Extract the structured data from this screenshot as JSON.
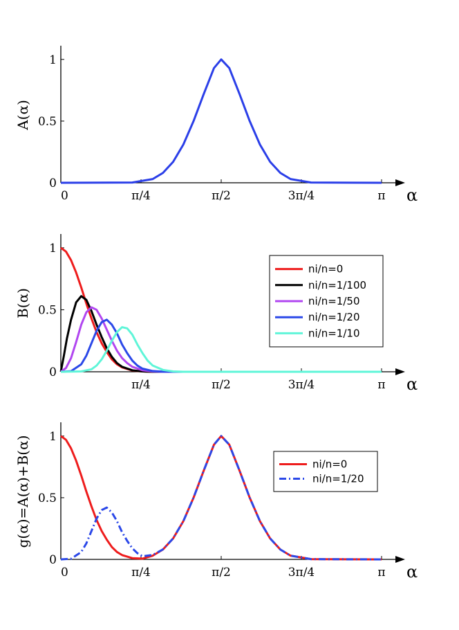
{
  "chart_data": [
    {
      "type": "line",
      "ylabel": "A(α)",
      "xlabel": "α",
      "xlim": [
        0,
        3.14159
      ],
      "ylim": [
        0,
        1.1
      ],
      "xticks": [
        {
          "value": 0,
          "label": "0"
        },
        {
          "value": 0.7854,
          "label": "π/4"
        },
        {
          "value": 1.5708,
          "label": "π/2"
        },
        {
          "value": 2.3562,
          "label": "3π/4"
        },
        {
          "value": 3.14159,
          "label": "π"
        }
      ],
      "yticks": [
        {
          "value": 0,
          "label": "0"
        },
        {
          "value": 0.5,
          "label": "0.5"
        },
        {
          "value": 1,
          "label": "1"
        }
      ],
      "legend": null,
      "series": [
        {
          "color": "#2b3fe8",
          "style": "solid",
          "x": [
            0,
            0.7,
            0.9,
            1.0,
            1.1,
            1.2,
            1.3,
            1.4,
            1.5,
            1.5708,
            1.65,
            1.75,
            1.85,
            1.95,
            2.05,
            2.15,
            2.25,
            2.45,
            3.14159
          ],
          "y": [
            0,
            0.002,
            0.03,
            0.08,
            0.17,
            0.31,
            0.5,
            0.72,
            0.93,
            1.0,
            0.93,
            0.72,
            0.5,
            0.31,
            0.17,
            0.08,
            0.03,
            0.002,
            0
          ]
        }
      ]
    },
    {
      "type": "line",
      "ylabel": "B(α)",
      "xlabel": "α",
      "xlim": [
        0,
        3.14159
      ],
      "ylim": [
        0,
        1.1
      ],
      "xticks": [
        {
          "value": 0.7854,
          "label": "π/4"
        },
        {
          "value": 1.5708,
          "label": "π/2"
        },
        {
          "value": 2.3562,
          "label": "3π/4"
        },
        {
          "value": 3.14159,
          "label": "π"
        }
      ],
      "yticks": [
        {
          "value": 0,
          "label": "0"
        },
        {
          "value": 0.5,
          "label": "0.5"
        },
        {
          "value": 1,
          "label": "1"
        }
      ],
      "legend": "top-right",
      "series": [
        {
          "name": "ni/n=0",
          "color": "#ee1c1c",
          "style": "solid",
          "x": [
            0,
            0.05,
            0.1,
            0.15,
            0.2,
            0.25,
            0.3,
            0.35,
            0.4,
            0.45,
            0.5,
            0.55,
            0.6,
            0.7,
            0.8,
            0.9,
            3.14159
          ],
          "y": [
            1.0,
            0.97,
            0.9,
            0.8,
            0.68,
            0.55,
            0.43,
            0.32,
            0.23,
            0.16,
            0.1,
            0.06,
            0.035,
            0.01,
            0.003,
            0,
            0
          ]
        },
        {
          "name": "ni/n=1/100",
          "color": "#000000",
          "style": "solid",
          "x": [
            0,
            0.03,
            0.06,
            0.1,
            0.15,
            0.2,
            0.25,
            0.3,
            0.35,
            0.4,
            0.45,
            0.5,
            0.55,
            0.6,
            0.7,
            0.8,
            0.9,
            3.14159
          ],
          "y": [
            0,
            0.13,
            0.27,
            0.42,
            0.56,
            0.61,
            0.58,
            0.49,
            0.38,
            0.28,
            0.19,
            0.12,
            0.07,
            0.04,
            0.012,
            0.003,
            0,
            0
          ]
        },
        {
          "name": "ni/n=1/50",
          "color": "#b146f0",
          "style": "solid",
          "x": [
            0,
            0.05,
            0.1,
            0.15,
            0.2,
            0.25,
            0.3,
            0.35,
            0.4,
            0.45,
            0.5,
            0.55,
            0.6,
            0.65,
            0.7,
            0.8,
            0.9,
            1.0,
            3.14159
          ],
          "y": [
            0,
            0.03,
            0.11,
            0.24,
            0.38,
            0.48,
            0.52,
            0.5,
            0.43,
            0.34,
            0.25,
            0.17,
            0.11,
            0.07,
            0.04,
            0.012,
            0.003,
            0,
            0
          ]
        },
        {
          "name": "ni/n=1/20",
          "color": "#2b48e8",
          "style": "solid",
          "x": [
            0,
            0.1,
            0.2,
            0.25,
            0.3,
            0.35,
            0.4,
            0.45,
            0.5,
            0.55,
            0.6,
            0.65,
            0.7,
            0.75,
            0.8,
            0.9,
            1.0,
            1.1,
            3.14159
          ],
          "y": [
            0,
            0.005,
            0.06,
            0.13,
            0.23,
            0.33,
            0.4,
            0.42,
            0.38,
            0.31,
            0.22,
            0.15,
            0.09,
            0.05,
            0.025,
            0.006,
            0.001,
            0,
            0
          ]
        },
        {
          "name": "ni/n=1/10",
          "color": "#5ff5d8",
          "style": "solid",
          "x": [
            0,
            0.2,
            0.3,
            0.35,
            0.4,
            0.45,
            0.5,
            0.55,
            0.6,
            0.65,
            0.7,
            0.75,
            0.8,
            0.85,
            0.9,
            1.0,
            1.1,
            1.2,
            3.14159
          ],
          "y": [
            0,
            0.003,
            0.02,
            0.05,
            0.1,
            0.17,
            0.25,
            0.32,
            0.36,
            0.35,
            0.3,
            0.22,
            0.15,
            0.09,
            0.05,
            0.015,
            0.003,
            0,
            0
          ]
        }
      ]
    },
    {
      "type": "line",
      "ylabel": "g(α)=A(α)+B(α)",
      "xlabel": "α",
      "xlim": [
        0,
        3.14159
      ],
      "ylim": [
        0,
        1.1
      ],
      "xticks": [
        {
          "value": 0,
          "label": "0"
        },
        {
          "value": 0.7854,
          "label": "π/4"
        },
        {
          "value": 1.5708,
          "label": "π/2"
        },
        {
          "value": 2.3562,
          "label": "3π/4"
        },
        {
          "value": 3.14159,
          "label": "π"
        }
      ],
      "yticks": [
        {
          "value": 0,
          "label": "0"
        },
        {
          "value": 0.5,
          "label": "0.5"
        },
        {
          "value": 1,
          "label": "1"
        }
      ],
      "legend": "top-right",
      "series": [
        {
          "name": "ni/n=0",
          "color": "#ee1c1c",
          "style": "solid",
          "x": [
            0,
            0.05,
            0.1,
            0.15,
            0.2,
            0.25,
            0.3,
            0.35,
            0.4,
            0.45,
            0.5,
            0.55,
            0.6,
            0.7,
            0.8,
            0.9,
            1.0,
            1.1,
            1.2,
            1.3,
            1.4,
            1.5,
            1.5708,
            1.65,
            1.75,
            1.85,
            1.95,
            2.05,
            2.15,
            2.25,
            2.45,
            3.14159
          ],
          "y": [
            1.0,
            0.97,
            0.9,
            0.8,
            0.68,
            0.55,
            0.43,
            0.32,
            0.23,
            0.16,
            0.1,
            0.06,
            0.035,
            0.01,
            0.006,
            0.03,
            0.08,
            0.17,
            0.31,
            0.5,
            0.72,
            0.93,
            1.0,
            0.93,
            0.72,
            0.5,
            0.31,
            0.17,
            0.08,
            0.03,
            0.002,
            0
          ]
        },
        {
          "name": "ni/n=1/20",
          "color": "#2b48e8",
          "style": "dashdot",
          "x": [
            0,
            0.1,
            0.2,
            0.25,
            0.3,
            0.35,
            0.4,
            0.45,
            0.5,
            0.55,
            0.6,
            0.65,
            0.7,
            0.75,
            0.8,
            0.9,
            1.0,
            1.1,
            1.2,
            1.3,
            1.4,
            1.5,
            1.5708,
            1.65,
            1.75,
            1.85,
            1.95,
            2.05,
            2.15,
            2.25,
            2.45,
            3.14159
          ],
          "y": [
            0,
            0.005,
            0.06,
            0.13,
            0.23,
            0.33,
            0.4,
            0.42,
            0.38,
            0.31,
            0.22,
            0.15,
            0.09,
            0.05,
            0.025,
            0.036,
            0.081,
            0.17,
            0.31,
            0.5,
            0.72,
            0.93,
            1.0,
            0.93,
            0.72,
            0.5,
            0.31,
            0.17,
            0.08,
            0.03,
            0.002,
            0
          ]
        }
      ]
    }
  ]
}
